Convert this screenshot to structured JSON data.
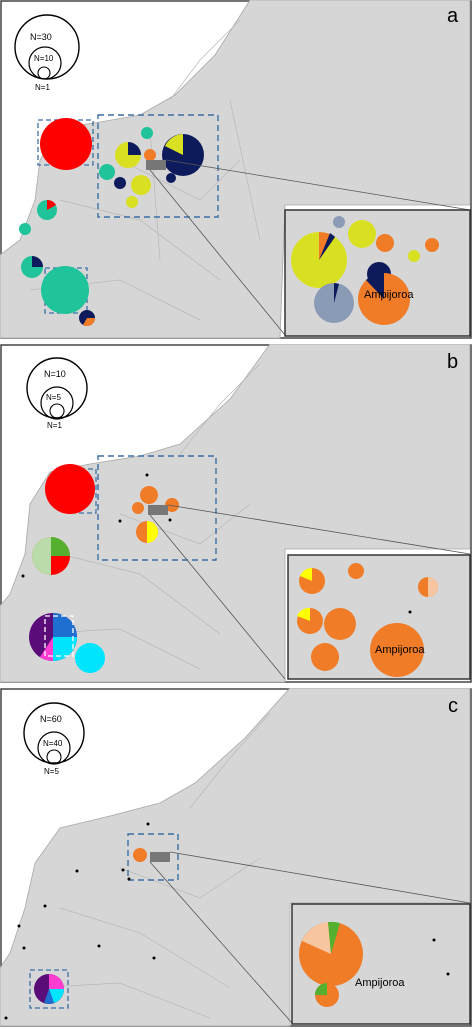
{
  "panels": [
    {
      "letter": "a",
      "legend": [
        "N=30",
        "N=10",
        "N=1"
      ],
      "inset_label": "Ampijoroa"
    },
    {
      "letter": "b",
      "legend": [
        "N=10",
        "N=5",
        "N=1"
      ],
      "inset_label": "Ampijoroa"
    },
    {
      "letter": "c",
      "legend": [
        "N=60",
        "N=40",
        "N=5"
      ],
      "inset_label": "Ampijoroa"
    }
  ],
  "colors": {
    "red": "#ff0000",
    "yellow_green": "#d9e021",
    "navy": "#0d1b5c",
    "orange": "#f07c28",
    "teal": "#1fc49a",
    "steel": "#8a9bb5",
    "yellow": "#ffff00",
    "light_green": "#b9dcaa",
    "purple": "#5a0c78",
    "cyan": "#00e5ff",
    "blue": "#1f6fd1",
    "magenta": "#ff3cd2",
    "peach": "#f7c6a0",
    "green": "#55b030",
    "map_land": "#d6d6d6",
    "map_sea": "#ffffff",
    "dashed_box": "#3b6fa6"
  }
}
